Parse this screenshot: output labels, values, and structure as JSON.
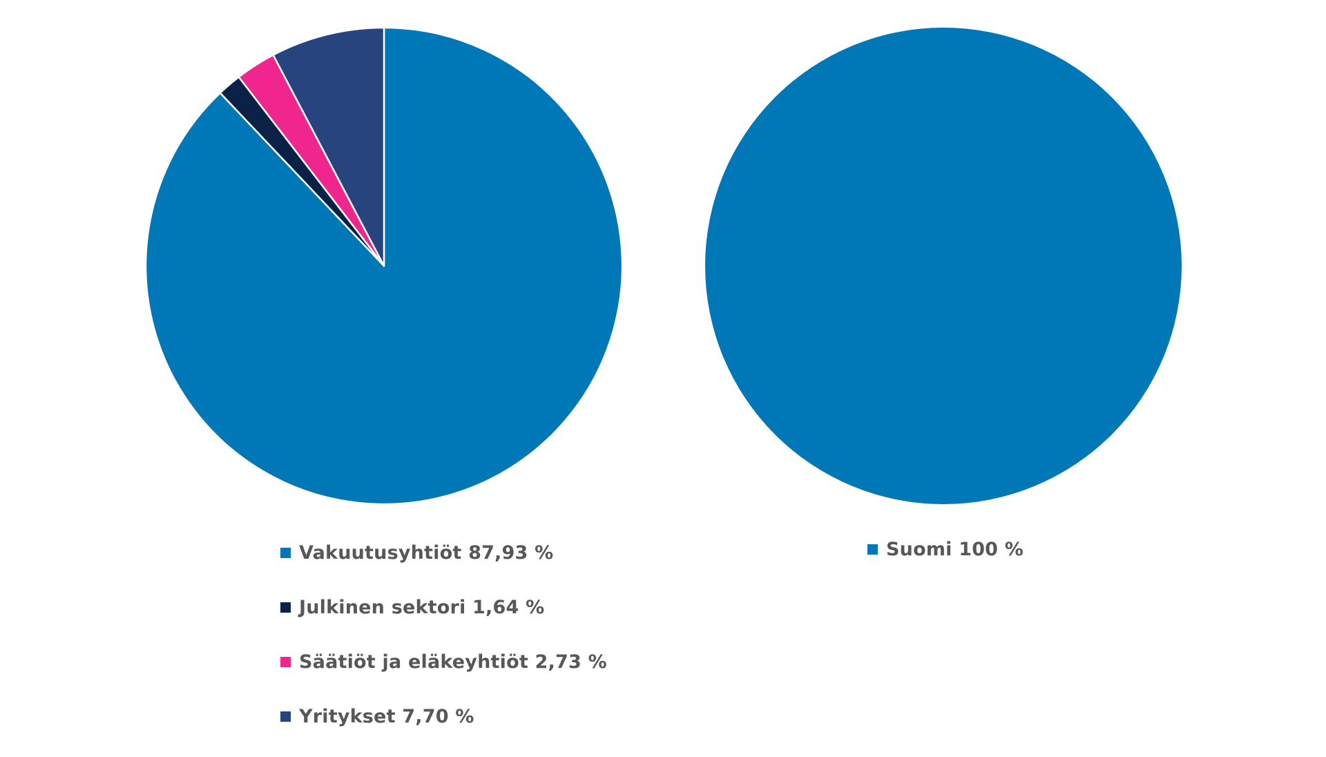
{
  "colors": {
    "slice_stroke": "#ffffff",
    "legend_text": "#575757"
  },
  "chart_data": [
    {
      "type": "pie",
      "legend_position": "bottom",
      "slices": [
        {
          "label": "Vakuutusyhtiöt",
          "value": 87.93,
          "value_text": "87,93 %",
          "legend_text": "Vakuutusyhtiöt 87,93 %",
          "color": "#0077b6"
        },
        {
          "label": "Julkinen sektori",
          "value": 1.64,
          "value_text": "1,64 %",
          "legend_text": "Julkinen sektori 1,64 %",
          "color": "#0b2148"
        },
        {
          "label": "Säätiöt ja eläkeyhtiöt",
          "value": 2.73,
          "value_text": "2,73 %",
          "legend_text": "Säätiöt ja eläkeyhtiöt 2,73 %",
          "color": "#f0258d"
        },
        {
          "label": "Yritykset",
          "value": 7.7,
          "value_text": "7,70 %",
          "legend_text": "Yritykset 7,70 %",
          "color": "#27447f"
        }
      ]
    },
    {
      "type": "pie",
      "legend_position": "bottom",
      "slices": [
        {
          "label": "Suomi",
          "value": 100,
          "value_text": "100 %",
          "legend_text": "Suomi 100 %",
          "color": "#0077b6"
        }
      ]
    }
  ]
}
